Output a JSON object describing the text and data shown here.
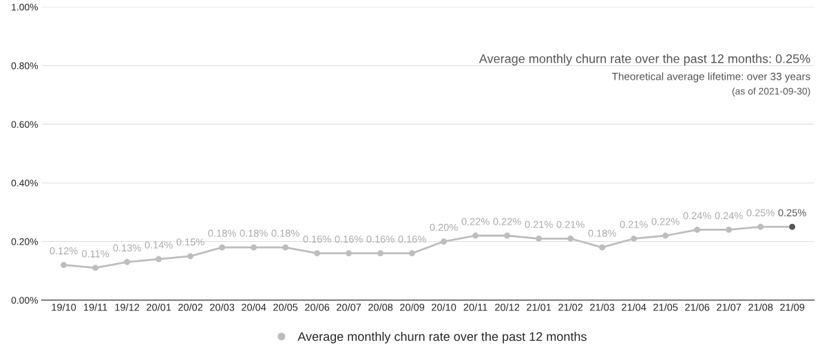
{
  "chart_data": {
    "type": "line",
    "categories": [
      "19/10",
      "19/11",
      "19/12",
      "20/01",
      "20/02",
      "20/03",
      "20/04",
      "20/05",
      "20/06",
      "20/07",
      "20/08",
      "20/09",
      "20/10",
      "20/11",
      "20/12",
      "21/01",
      "21/02",
      "21/03",
      "21/04",
      "21/05",
      "21/06",
      "21/07",
      "21/08",
      "21/09"
    ],
    "series": [
      {
        "name": "Average monthly churn rate over the past 12 months",
        "color": "#bdbdbd",
        "colors": [
          "#bdbdbd",
          "#bdbdbd",
          "#bdbdbd",
          "#bdbdbd",
          "#bdbdbd",
          "#bdbdbd",
          "#bdbdbd",
          "#bdbdbd",
          "#bdbdbd",
          "#bdbdbd",
          "#bdbdbd",
          "#bdbdbd",
          "#bdbdbd",
          "#bdbdbd",
          "#bdbdbd",
          "#bdbdbd",
          "#bdbdbd",
          "#bdbdbd",
          "#bdbdbd",
          "#bdbdbd",
          "#bdbdbd",
          "#bdbdbd",
          "#bdbdbd",
          "#555555"
        ],
        "values": [
          0.12,
          0.11,
          0.13,
          0.14,
          0.15,
          0.18,
          0.18,
          0.18,
          0.16,
          0.16,
          0.16,
          0.16,
          0.2,
          0.22,
          0.22,
          0.21,
          0.21,
          0.18,
          0.21,
          0.22,
          0.24,
          0.24,
          0.25,
          0.25
        ],
        "value_labels": [
          "0.12%",
          "0.11%",
          "0.13%",
          "0.14%",
          "0.15%",
          "0.18%",
          "0.18%",
          "0.18%",
          "0.16%",
          "0.16%",
          "0.16%",
          "0.16%",
          "0.20%",
          "0.22%",
          "0.22%",
          "0.21%",
          "0.21%",
          "0.18%",
          "0.21%",
          "0.22%",
          "0.24%",
          "0.24%",
          "0.25%",
          "0.25%"
        ]
      }
    ],
    "ylim": [
      0,
      1.0
    ],
    "yticks": [
      {
        "value": 0,
        "label": "0.00%"
      },
      {
        "value": 0.2,
        "label": "0.20%"
      },
      {
        "value": 0.4,
        "label": "0.40%"
      },
      {
        "value": 0.6,
        "label": "0.60%"
      },
      {
        "value": 0.8,
        "label": "0.80%"
      },
      {
        "value": 1.0,
        "label": "1.00%"
      }
    ],
    "grid": "y",
    "legend": "bottom",
    "marker": "circle",
    "line_style": "solid",
    "annotations": [
      "Average monthly churn rate over the past 12 months: 0.25%",
      "Theoretical average lifetime: over 33 years",
      "(as of 2021-09-30)"
    ]
  }
}
